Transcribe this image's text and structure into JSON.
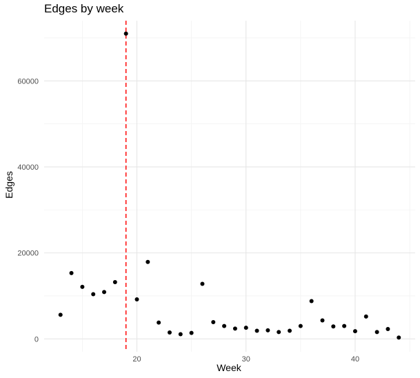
{
  "chart_data": {
    "type": "scatter",
    "title": "Edges by week",
    "xlabel": "Week",
    "ylabel": "Edges",
    "xlim": [
      11.5,
      45.5
    ],
    "ylim": [
      -3000,
      74000
    ],
    "x_ticks": [
      20,
      30,
      40
    ],
    "x_ticks_minor": [
      15,
      25,
      35,
      45
    ],
    "y_ticks": [
      0,
      20000,
      40000,
      60000
    ],
    "y_ticks_minor": [
      10000,
      30000,
      50000,
      70000
    ],
    "grid": true,
    "reference_line": {
      "x": 19,
      "color": "#ff0000",
      "style": "dashed"
    },
    "point_color": "#000000",
    "points": [
      {
        "x": 13,
        "y": 5600
      },
      {
        "x": 14,
        "y": 15300
      },
      {
        "x": 15,
        "y": 12100
      },
      {
        "x": 16,
        "y": 10400
      },
      {
        "x": 17,
        "y": 10900
      },
      {
        "x": 18,
        "y": 13200
      },
      {
        "x": 19,
        "y": 71000
      },
      {
        "x": 20,
        "y": 9200
      },
      {
        "x": 21,
        "y": 17900
      },
      {
        "x": 22,
        "y": 3800
      },
      {
        "x": 23,
        "y": 1500
      },
      {
        "x": 24,
        "y": 1100
      },
      {
        "x": 25,
        "y": 1400
      },
      {
        "x": 26,
        "y": 12800
      },
      {
        "x": 27,
        "y": 3900
      },
      {
        "x": 28,
        "y": 3000
      },
      {
        "x": 29,
        "y": 2400
      },
      {
        "x": 30,
        "y": 2600
      },
      {
        "x": 31,
        "y": 1900
      },
      {
        "x": 32,
        "y": 2000
      },
      {
        "x": 33,
        "y": 1600
      },
      {
        "x": 34,
        "y": 1900
      },
      {
        "x": 35,
        "y": 3000
      },
      {
        "x": 36,
        "y": 8800
      },
      {
        "x": 37,
        "y": 4300
      },
      {
        "x": 38,
        "y": 2900
      },
      {
        "x": 39,
        "y": 3000
      },
      {
        "x": 40,
        "y": 1800
      },
      {
        "x": 41,
        "y": 5200
      },
      {
        "x": 42,
        "y": 1600
      },
      {
        "x": 43,
        "y": 2300
      },
      {
        "x": 44,
        "y": 300
      }
    ]
  }
}
